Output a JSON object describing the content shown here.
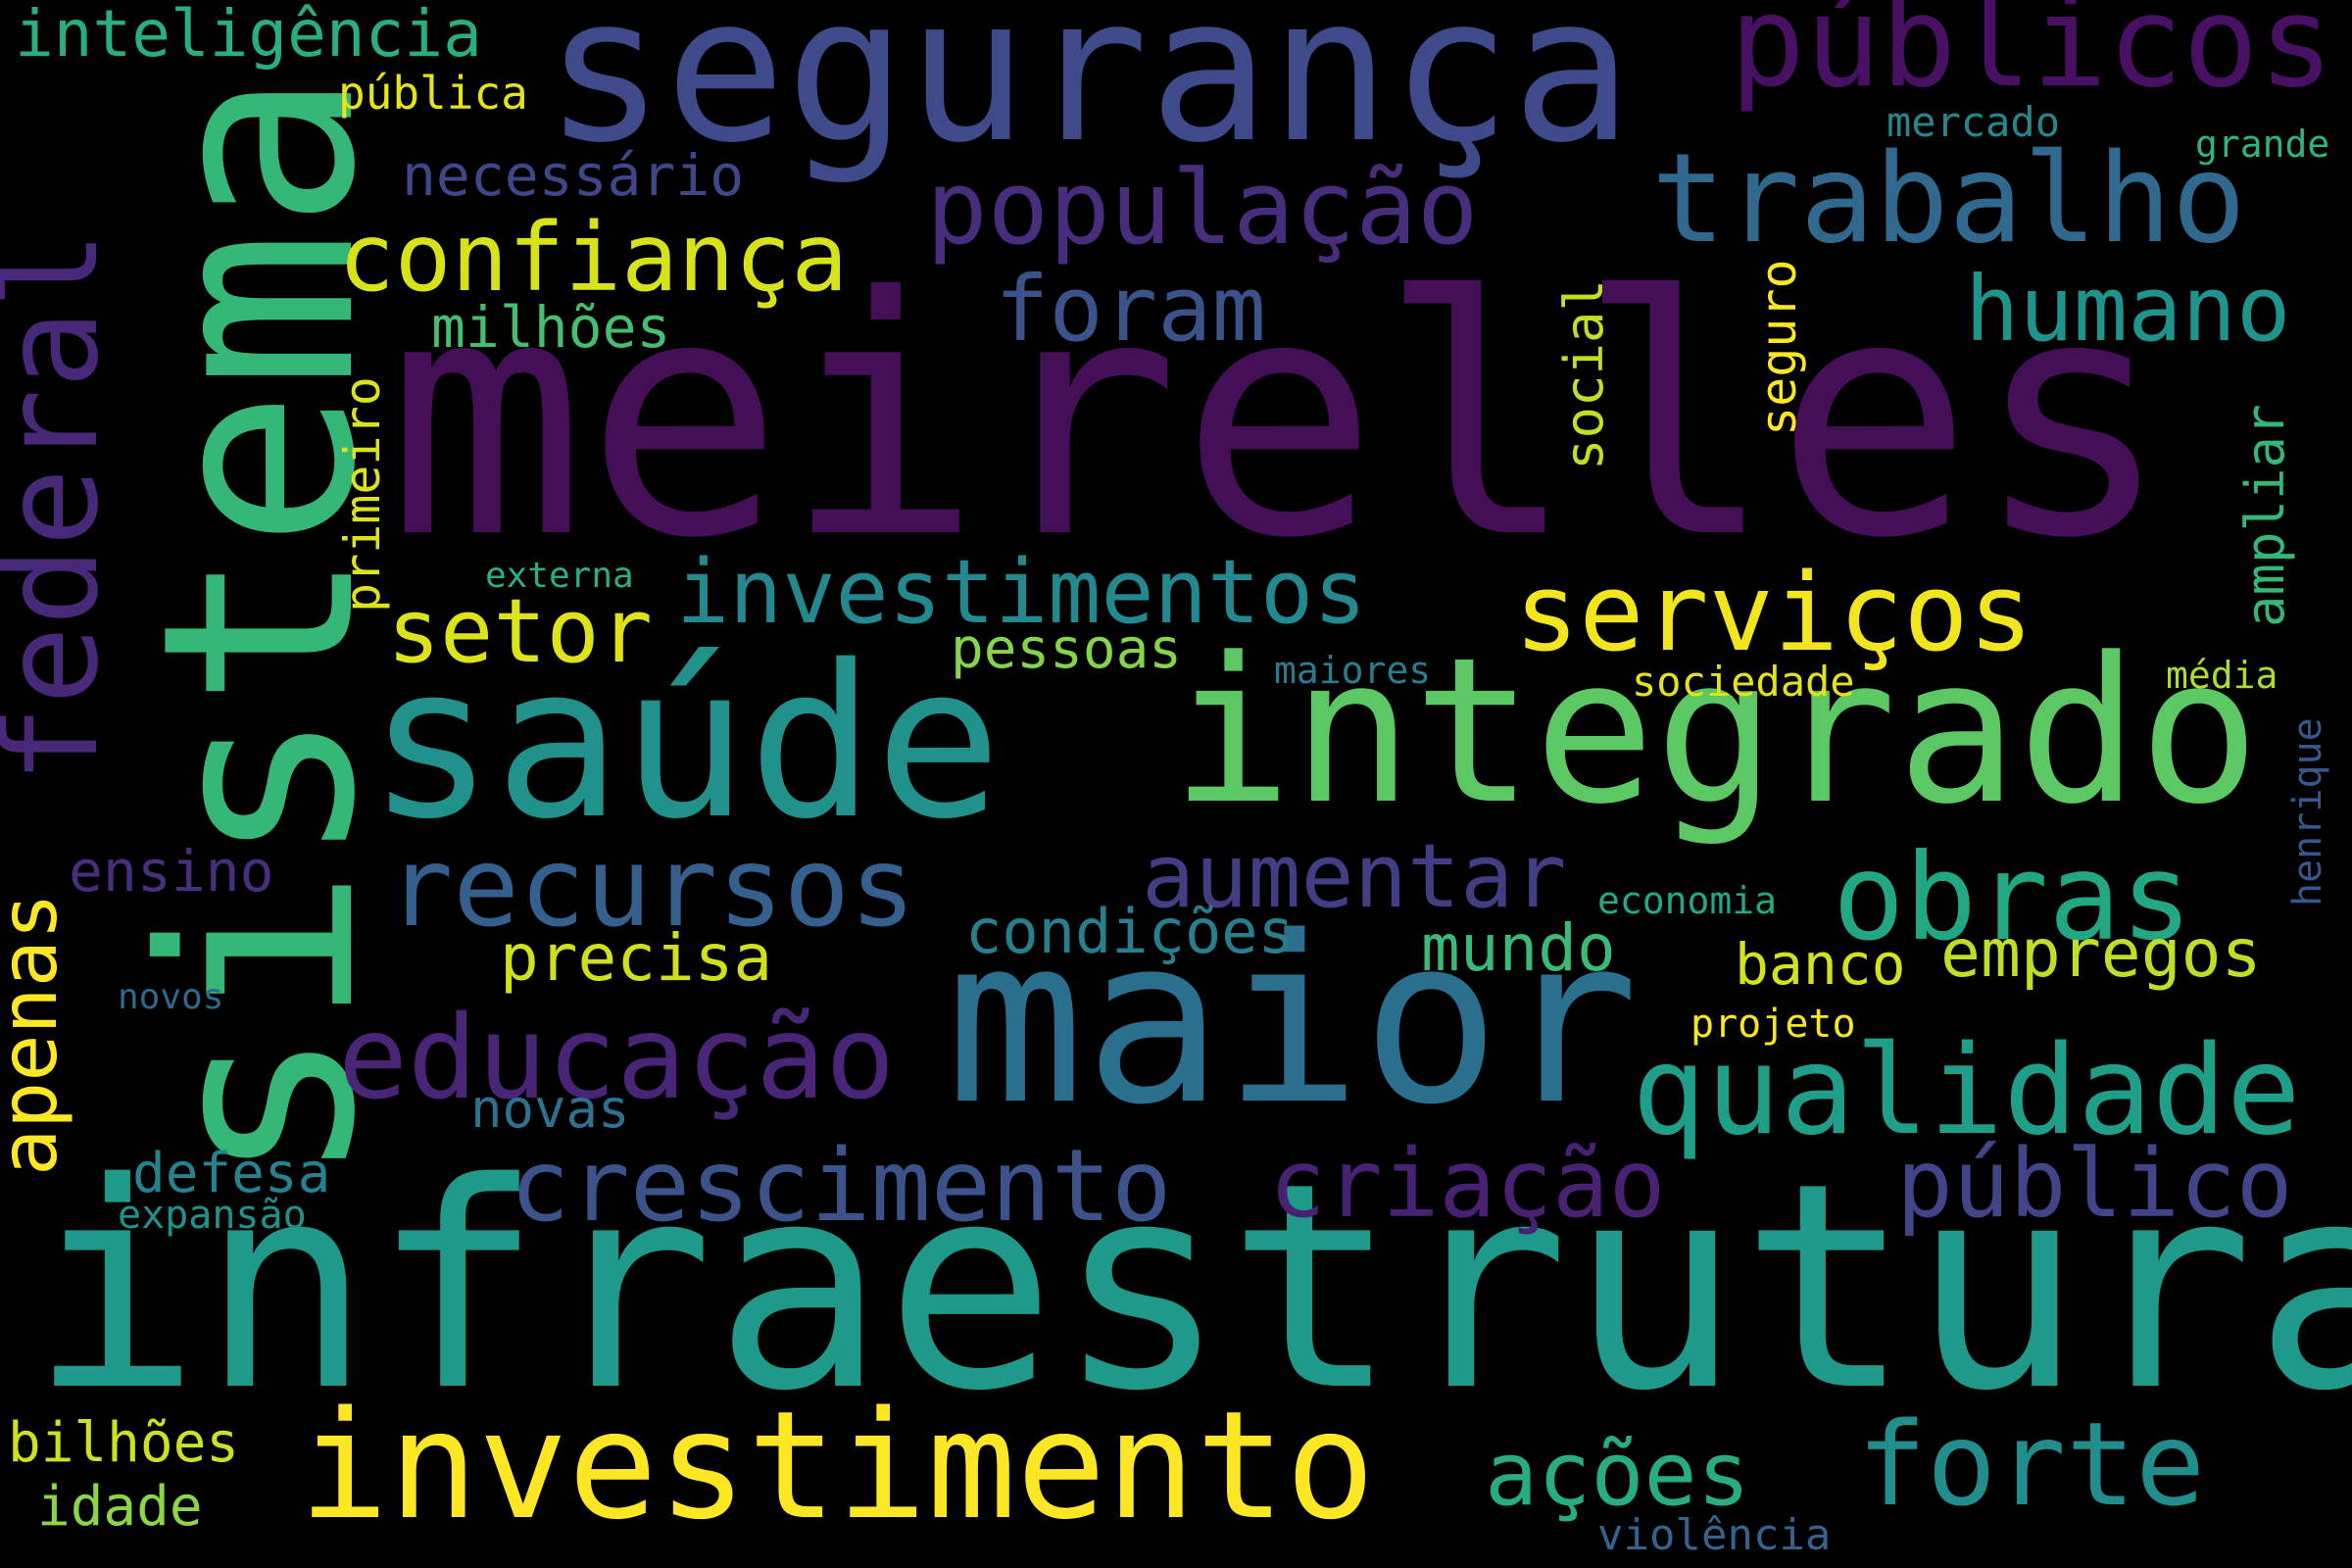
{
  "words": [
    {
      "text": "meirelles",
      "color": "#440f57"
    },
    {
      "text": "sistema",
      "color": "#35b778"
    },
    {
      "text": "infraestrutura",
      "color": "#1f9a8a"
    },
    {
      "text": "segurança",
      "color": "#3e4a89"
    },
    {
      "text": "maior",
      "color": "#2b6f8e"
    },
    {
      "text": "saúde",
      "color": "#21918c"
    },
    {
      "text": "integrado",
      "color": "#5cc863"
    },
    {
      "text": "investimento",
      "color": "#fde725"
    },
    {
      "text": "federal",
      "color": "#482879"
    },
    {
      "text": "públicos",
      "color": "#471063"
    },
    {
      "text": "trabalho",
      "color": "#31688e"
    },
    {
      "text": "população",
      "color": "#472d7b"
    },
    {
      "text": "confiança",
      "color": "#d8e219"
    },
    {
      "text": "foram",
      "color": "#3b528b"
    },
    {
      "text": "humano",
      "color": "#1f948c"
    },
    {
      "text": "investimentos",
      "color": "#23898e"
    },
    {
      "text": "serviços",
      "color": "#f1e51d"
    },
    {
      "text": "setor",
      "color": "#dde318"
    },
    {
      "text": "recursos",
      "color": "#355f8d"
    },
    {
      "text": "aumentar",
      "color": "#433d84"
    },
    {
      "text": "obras",
      "color": "#22a785"
    },
    {
      "text": "educação",
      "color": "#482576"
    },
    {
      "text": "qualidade",
      "color": "#1f9e89"
    },
    {
      "text": "crescimento",
      "color": "#3b528b"
    },
    {
      "text": "criação",
      "color": "#482173"
    },
    {
      "text": "público",
      "color": "#414487"
    },
    {
      "text": "apenas",
      "color": "#fde725"
    },
    {
      "text": "ações",
      "color": "#27ad81"
    },
    {
      "text": "forte",
      "color": "#218e8d"
    },
    {
      "text": "empregos",
      "color": "#bddf26"
    },
    {
      "text": "precisa",
      "color": "#d0e11c"
    },
    {
      "text": "mundo",
      "color": "#3aba76"
    },
    {
      "text": "condições",
      "color": "#277f8e"
    },
    {
      "text": "banco",
      "color": "#d2e21b"
    },
    {
      "text": "inteligência",
      "color": "#29af7f"
    },
    {
      "text": "pública",
      "color": "#e5e419"
    },
    {
      "text": "necessário",
      "color": "#3f4788"
    },
    {
      "text": "milhões",
      "color": "#44bf70"
    },
    {
      "text": "primeiro",
      "color": "#dce319"
    },
    {
      "text": "social",
      "color": "#c2df23"
    },
    {
      "text": "seguro",
      "color": "#fde725"
    },
    {
      "text": "ampliar",
      "color": "#35b779"
    },
    {
      "text": "externa",
      "color": "#2ab07f"
    },
    {
      "text": "pessoas",
      "color": "#86d549"
    },
    {
      "text": "maiores",
      "color": "#287c8e"
    },
    {
      "text": "sociedade",
      "color": "#e2e418"
    },
    {
      "text": "média",
      "color": "#addc30"
    },
    {
      "text": "ensino",
      "color": "#472f7d"
    },
    {
      "text": "economia",
      "color": "#22a884"
    },
    {
      "text": "henrique",
      "color": "#39568c"
    },
    {
      "text": "novos",
      "color": "#31688e"
    },
    {
      "text": "projeto",
      "color": "#f8e621"
    },
    {
      "text": "novas",
      "color": "#2c728e"
    },
    {
      "text": "defesa",
      "color": "#26828e"
    },
    {
      "text": "expansão",
      "color": "#20928c"
    },
    {
      "text": "bilhões",
      "color": "#cde11d"
    },
    {
      "text": "idade",
      "color": "#8bd646"
    },
    {
      "text": "violência",
      "color": "#33628d"
    },
    {
      "text": "mercado",
      "color": "#24878e"
    },
    {
      "text": "grande",
      "color": "#2fb47c"
    }
  ]
}
